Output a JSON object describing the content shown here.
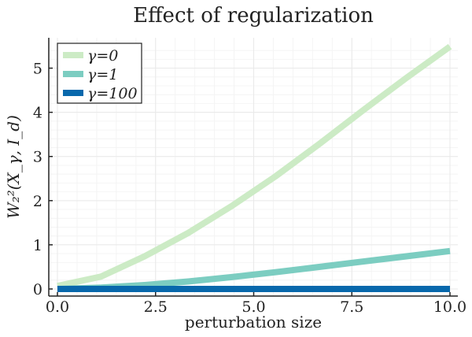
{
  "chart_data": {
    "type": "line",
    "title": "Effect of regularization",
    "xlabel": "perturbation size",
    "ylabel": "W₂²(X_γ, I_d)",
    "xlim": [
      0,
      10
    ],
    "ylim": [
      0,
      5.5
    ],
    "grid": true,
    "legend_position": "top-left",
    "xticks": [
      "0.0",
      "2.5",
      "5.0",
      "7.5",
      "10.0"
    ],
    "yticks": [
      "0",
      "1",
      "2",
      "3",
      "4",
      "5"
    ],
    "x": [
      0,
      1.111,
      2.222,
      3.333,
      4.444,
      5.556,
      6.667,
      7.778,
      8.889,
      10.0
    ],
    "series": [
      {
        "name": "γ=0",
        "color": "#ccebc5",
        "values": [
          0.07,
          0.28,
          0.74,
          1.27,
          1.88,
          2.55,
          3.28,
          4.04,
          4.78,
          5.49
        ]
      },
      {
        "name": "γ=1",
        "color": "#7ccdc1",
        "values": [
          0.0,
          0.03,
          0.09,
          0.17,
          0.27,
          0.38,
          0.5,
          0.62,
          0.74,
          0.86
        ]
      },
      {
        "name": "γ=100",
        "color": "#0868ac",
        "values": [
          0.0,
          0.0,
          0.0,
          0.0,
          0.0,
          0.0,
          0.0,
          0.0,
          0.0,
          0.0
        ]
      }
    ]
  }
}
